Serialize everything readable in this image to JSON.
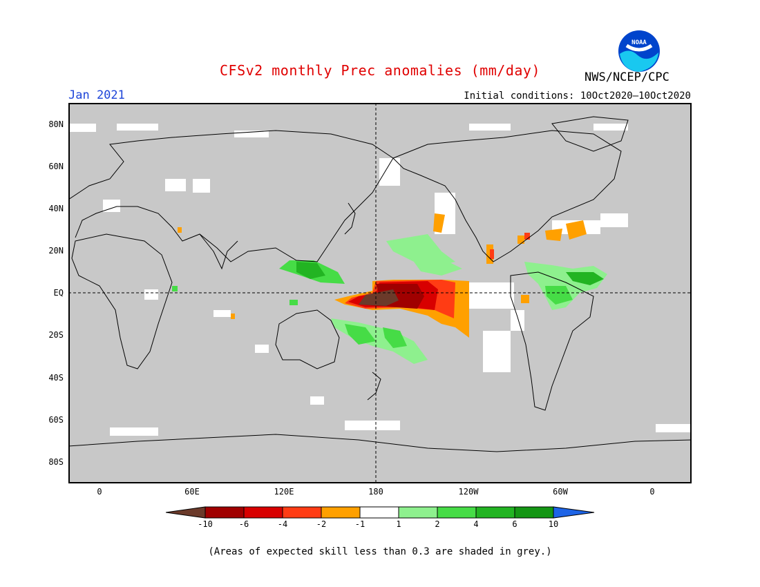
{
  "header": {
    "title": "CFSv2 monthly Prec anomalies (mm/day)",
    "month": "Jan 2021",
    "initial_conditions": "Initial conditions: 10Oct2020–10Oct2020",
    "agency": "NWS/NCEP/CPC",
    "logo_text": "NOAA"
  },
  "map": {
    "lat_labels": [
      "80N",
      "60N",
      "40N",
      "20N",
      "EQ",
      "20S",
      "40S",
      "60S",
      "80S"
    ],
    "lon_labels": [
      "0",
      "60E",
      "120E",
      "180",
      "120W",
      "60W",
      "0"
    ],
    "background_color": "#c8c8c8",
    "grid_note": "dashed reference lines at EQ and 180"
  },
  "colorbar": {
    "labels": [
      "-10",
      "-6",
      "-4",
      "-2",
      "-1",
      "1",
      "2",
      "4",
      "6",
      "10"
    ],
    "colors": [
      "#6b3a2a",
      "#a00000",
      "#d80000",
      "#ff3c14",
      "#ffa000",
      "#ffffff",
      "#8ef08e",
      "#46dc46",
      "#22b422",
      "#149614",
      "#1e64e6"
    ]
  },
  "footnote": "(Areas of expected skill less than 0.3 are shaded in grey.)"
}
